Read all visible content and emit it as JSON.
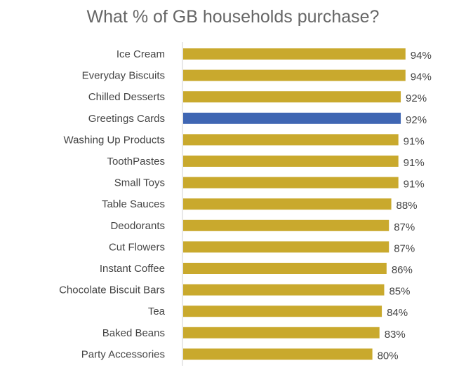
{
  "chart_data": {
    "type": "bar",
    "orientation": "horizontal",
    "title": "What % of GB households purchase?",
    "xlabel": "",
    "ylabel": "",
    "xlim": [
      0,
      100
    ],
    "grid": false,
    "value_suffix": "%",
    "colors": {
      "default": "#C9A92D",
      "highlight": "#3F66B3",
      "axis": "#D0D0D0"
    },
    "highlight_category": "Greetings Cards",
    "categories": [
      "Ice Cream",
      "Everyday Biscuits",
      "Chilled Desserts",
      "Greetings Cards",
      "Washing Up Products",
      "ToothPastes",
      "Small Toys",
      "Table Sauces",
      "Deodorants",
      "Cut Flowers",
      "Instant Coffee",
      "Chocolate Biscuit Bars",
      "Tea",
      "Baked Beans",
      "Party Accessories"
    ],
    "values": [
      94,
      94,
      92,
      92,
      91,
      91,
      91,
      88,
      87,
      87,
      86,
      85,
      84,
      83,
      80
    ]
  }
}
